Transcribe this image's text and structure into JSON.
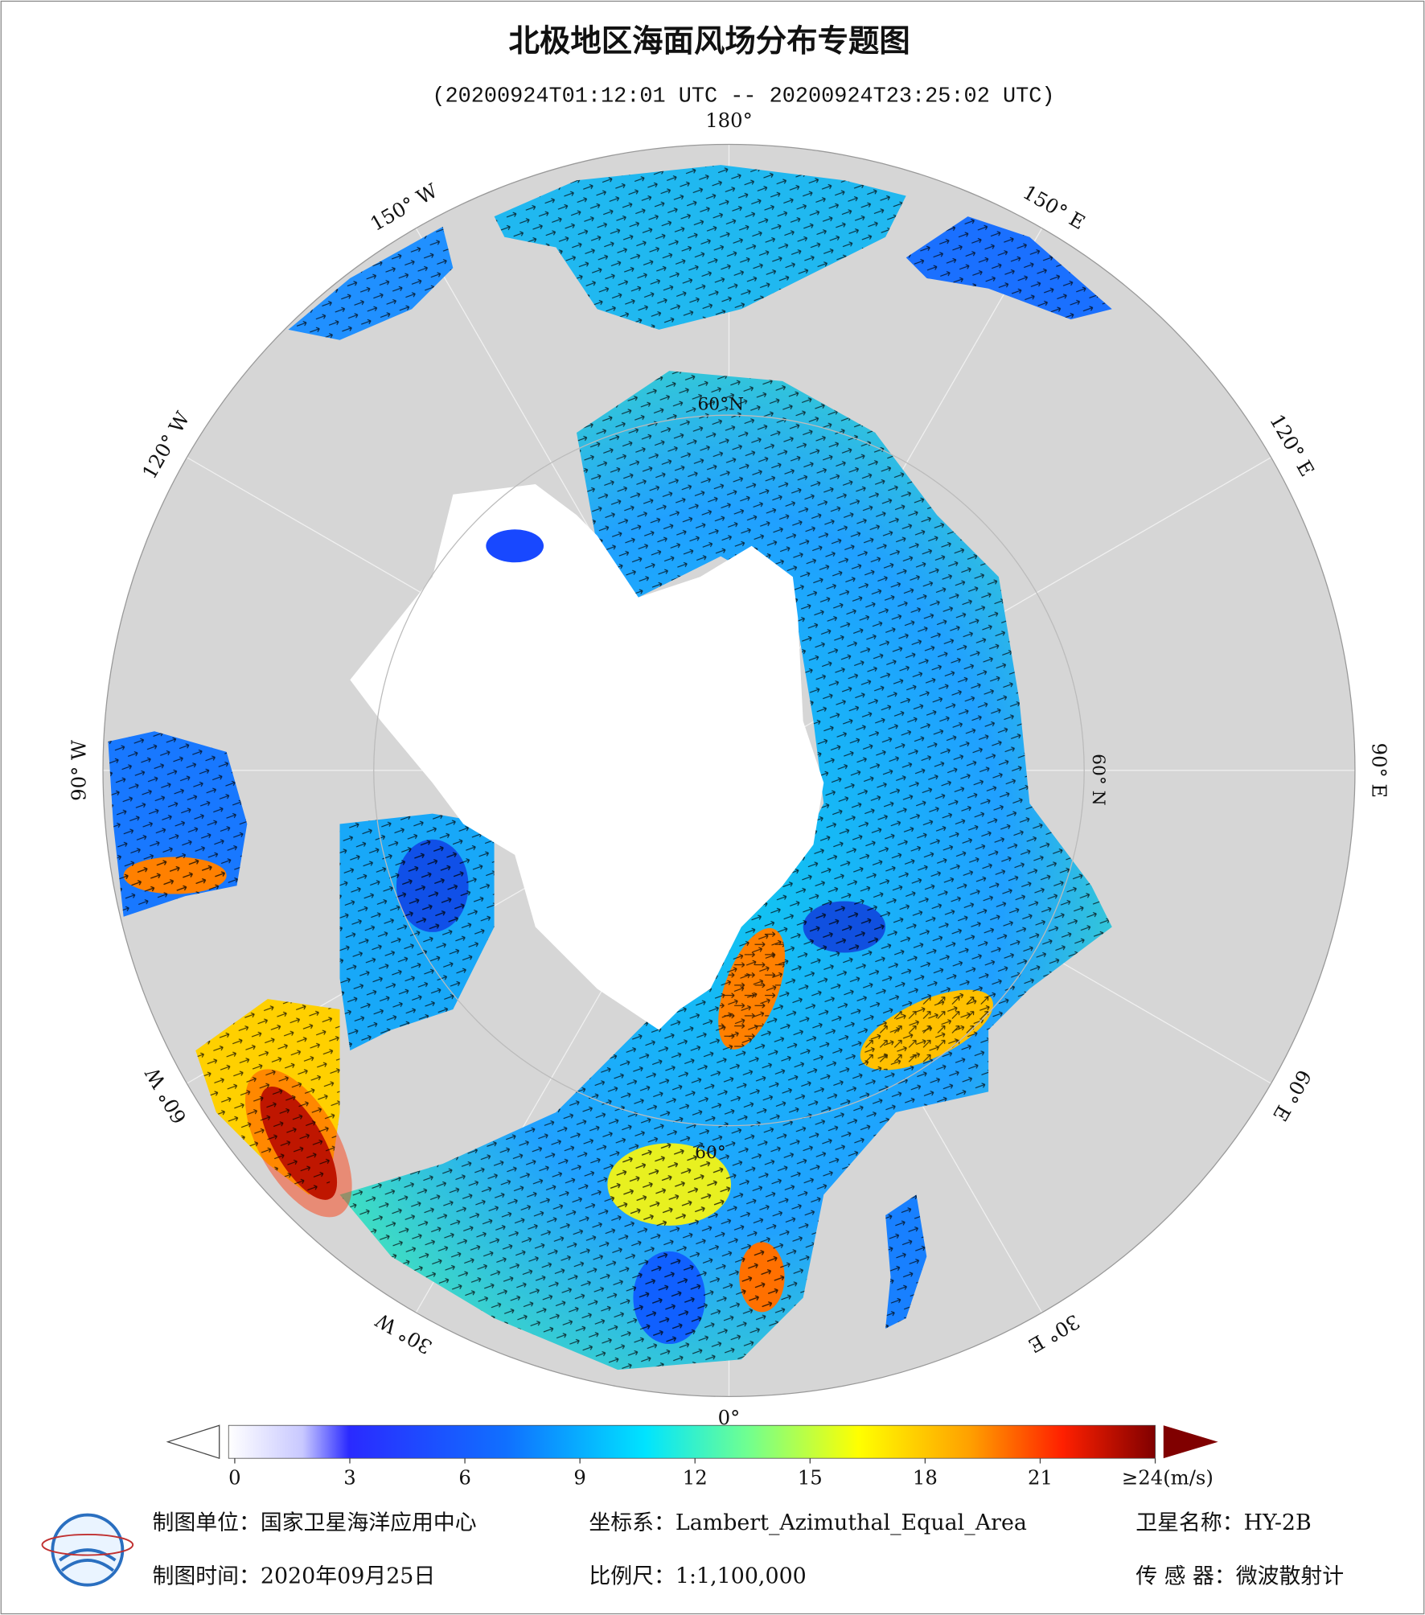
{
  "header": {
    "title": "北极地区海面风场分布专题图",
    "subtitle": "(20200924T01:12:01 UTC -- 20200924T23:25:02 UTC)"
  },
  "map": {
    "longitude_labels": [
      "180°",
      "150° E",
      "120° E",
      "90° E",
      "60° E",
      "30° E",
      "0°",
      "30° W",
      "60° W",
      "90° W",
      "120° W",
      "150° W"
    ],
    "latitude_labels": [
      "60°N",
      "60° N",
      "60°"
    ]
  },
  "colorbar": {
    "range": [
      0,
      24
    ],
    "ticks": [
      0,
      3,
      6,
      9,
      12,
      15,
      18,
      21,
      {
        "value": 24,
        "label": "≥24(m/s)"
      }
    ]
  },
  "footer": {
    "rows": [
      [
        "制图单位：国家卫星海洋应用中心",
        "坐标系：Lambert_Azimuthal_Equal_Area",
        "卫星名称：HY-2B"
      ],
      [
        "制图时间：2020年09月25日",
        "比例尺：1:1,100,000",
        "传 感 器：微波散射计"
      ]
    ]
  }
}
